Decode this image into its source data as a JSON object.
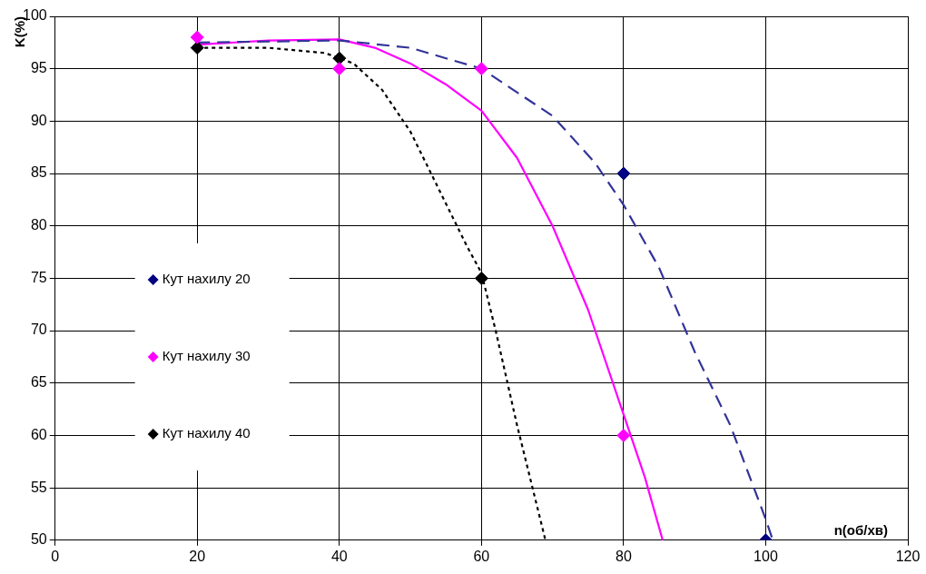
{
  "chart_data": {
    "type": "scatter",
    "xlabel": "n(об/хв)",
    "ylabel": "K(%)",
    "xlim": [
      0,
      120
    ],
    "xticks": [
      0,
      20,
      40,
      60,
      80,
      100,
      120
    ],
    "ylim": [
      50,
      100
    ],
    "yticks": [
      50,
      55,
      60,
      65,
      70,
      75,
      80,
      85,
      90,
      95,
      100
    ],
    "grid": true,
    "legend": "left",
    "marker": "diamond",
    "series": [
      {
        "name": "Кут нахилу 20",
        "color": "#000080",
        "x": [
          80,
          100
        ],
        "values": [
          85,
          50
        ]
      },
      {
        "name": "Кут нахилу 30",
        "color": "#ff00ff",
        "x": [
          20,
          40,
          60,
          80
        ],
        "values": [
          98,
          95,
          95,
          60
        ]
      },
      {
        "name": "Кут нахилу 40",
        "color": "#000000",
        "x": [
          20,
          40,
          60
        ],
        "values": [
          97,
          96,
          75
        ]
      },
      {
        "type": "line",
        "color": "#333399",
        "line_style": "dashed",
        "marker": "none",
        "x": [
          20,
          30,
          40,
          50,
          60,
          70,
          76,
          80,
          85,
          90,
          95,
          100,
          101
        ],
        "values": [
          97.5,
          97.6,
          97.7,
          97,
          95,
          90.5,
          86,
          82,
          76,
          68,
          61,
          52,
          50
        ]
      },
      {
        "type": "line",
        "color": "#ff00ff",
        "line_style": "solid",
        "marker": "none",
        "x": [
          20,
          30,
          40,
          45,
          50,
          55,
          60,
          65,
          70,
          75,
          80,
          83,
          85.5
        ],
        "values": [
          97.3,
          97.7,
          97.8,
          97,
          95.5,
          93.5,
          91,
          86.5,
          80,
          72,
          62,
          56,
          50
        ]
      },
      {
        "type": "line",
        "color": "#000000",
        "line_style": "dotted",
        "marker": "none",
        "x": [
          20,
          30,
          38,
          42,
          46,
          50,
          54,
          58,
          60,
          62,
          65,
          67,
          69
        ],
        "values": [
          97,
          97,
          96.5,
          95.5,
          93,
          89,
          83.5,
          78,
          75.5,
          70,
          61,
          55.5,
          50
        ]
      }
    ]
  }
}
